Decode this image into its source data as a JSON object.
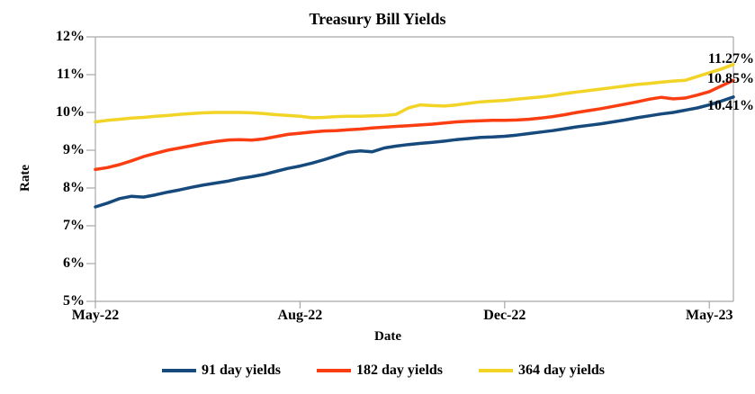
{
  "chart_data": {
    "type": "line",
    "title": "Treasury Bill Yields",
    "xlabel": "Date",
    "ylabel": "Rate",
    "y_min": 5,
    "y_max": 12,
    "y_step": 1,
    "y_tick_labels": [
      "12%",
      "11%",
      "10%",
      "9%",
      "8%",
      "7%",
      "6%",
      "5%"
    ],
    "x_ticks": [
      {
        "label": "May-22",
        "index": 0
      },
      {
        "label": "Aug-22",
        "index": 17
      },
      {
        "label": "Dec-22",
        "index": 34
      },
      {
        "label": "May-23",
        "index": 51
      }
    ],
    "grid": false,
    "legend_position": "bottom",
    "axis_color": "#a8a8a8",
    "series": [
      {
        "name": "91 day yields",
        "color": "#164a7d",
        "end_label": "10.41%",
        "end_label_dy": 10,
        "values": [
          7.5,
          7.6,
          7.72,
          7.78,
          7.76,
          7.82,
          7.89,
          7.95,
          8.02,
          8.08,
          8.13,
          8.18,
          8.25,
          8.3,
          8.36,
          8.44,
          8.52,
          8.58,
          8.66,
          8.75,
          8.85,
          8.95,
          8.98,
          8.96,
          9.06,
          9.11,
          9.15,
          9.18,
          9.21,
          9.24,
          9.28,
          9.31,
          9.34,
          9.35,
          9.37,
          9.4,
          9.44,
          9.48,
          9.52,
          9.57,
          9.62,
          9.66,
          9.7,
          9.75,
          9.8,
          9.86,
          9.91,
          9.96,
          10.0,
          10.06,
          10.12,
          10.2,
          10.3,
          10.41
        ]
      },
      {
        "name": "182 day yields",
        "color": "#fb3d12",
        "end_label": "10.85%",
        "end_label_dy": -1,
        "values": [
          8.49,
          8.54,
          8.62,
          8.72,
          8.83,
          8.92,
          9.0,
          9.06,
          9.12,
          9.18,
          9.23,
          9.27,
          9.28,
          9.27,
          9.3,
          9.36,
          9.42,
          9.45,
          9.48,
          9.51,
          9.52,
          9.54,
          9.56,
          9.59,
          9.61,
          9.63,
          9.65,
          9.67,
          9.69,
          9.72,
          9.75,
          9.77,
          9.78,
          9.79,
          9.79,
          9.8,
          9.82,
          9.85,
          9.89,
          9.94,
          10.0,
          10.05,
          10.1,
          10.16,
          10.22,
          10.28,
          10.35,
          10.4,
          10.36,
          10.38,
          10.46,
          10.55,
          10.7,
          10.85
        ]
      },
      {
        "name": "364 day yields",
        "color": "#f2d426",
        "end_label": "11.27%",
        "end_label_dy": -6,
        "values": [
          9.75,
          9.79,
          9.82,
          9.85,
          9.87,
          9.9,
          9.92,
          9.95,
          9.97,
          9.99,
          10.0,
          10.0,
          10.0,
          9.99,
          9.97,
          9.94,
          9.92,
          9.9,
          9.86,
          9.87,
          9.89,
          9.9,
          9.9,
          9.91,
          9.92,
          9.95,
          10.12,
          10.2,
          10.18,
          10.17,
          10.2,
          10.24,
          10.28,
          10.3,
          10.32,
          10.35,
          10.38,
          10.41,
          10.45,
          10.5,
          10.54,
          10.58,
          10.62,
          10.66,
          10.7,
          10.74,
          10.77,
          10.8,
          10.83,
          10.85,
          10.95,
          11.05,
          11.15,
          11.27
        ]
      }
    ]
  }
}
